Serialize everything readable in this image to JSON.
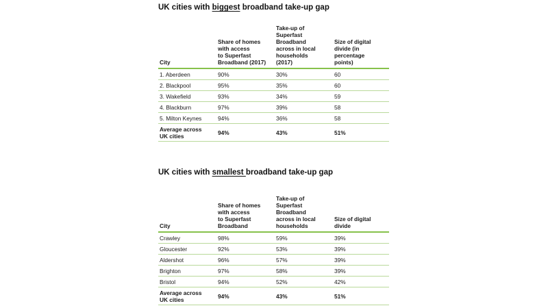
{
  "tables": [
    {
      "title_prefix": "UK cities with ",
      "title_emphasis": "biggest",
      "title_suffix": " broadband take-up gap",
      "headers": [
        "City",
        "Share of homes\nwith access\nto Superfast\nBroadband (2017)",
        "Take-up of\nSuperfast\nBroadband\nacross in local\nhouseholds\n(2017)",
        "Size of digital\ndivide (in\npercentage\npoints)"
      ],
      "rows": [
        [
          "1. Aberdeen",
          "90%",
          "30%",
          "60"
        ],
        [
          "2. Blackpool",
          "95%",
          "35%",
          "60"
        ],
        [
          "3. Wakefield",
          "93%",
          "34%",
          "59"
        ],
        [
          "4. Blackburn",
          "97%",
          "39%",
          "58"
        ],
        [
          "5. Milton Keynes",
          "94%",
          "36%",
          "58"
        ]
      ],
      "average": [
        "Average across\nUK cities",
        "94%",
        "43%",
        "51%"
      ]
    },
    {
      "title_prefix": "UK cities with ",
      "title_emphasis": "smallest ",
      "title_suffix": "broadband take-up gap",
      "headers": [
        "City",
        "Share of homes\nwith access\nto Superfast\nBroadband",
        "Take-up of\nSuperfast\nBroadband\nacross in local\nhouseholds",
        "Size of digital\ndivide"
      ],
      "rows": [
        [
          "Crawley",
          "98%",
          "59%",
          "39%"
        ],
        [
          "Gloucester",
          "92%",
          "53%",
          "39%"
        ],
        [
          "Aldershot",
          "96%",
          "57%",
          "39%"
        ],
        [
          "Brighton",
          "97%",
          "58%",
          "39%"
        ],
        [
          "Bristol",
          "94%",
          "52%",
          "42%"
        ]
      ],
      "average": [
        "Average across\nUK cities",
        "94%",
        "43%",
        "51%"
      ]
    }
  ],
  "colors": {
    "accent_rule": "#86c14a",
    "row_rule": "#b9d99a"
  }
}
